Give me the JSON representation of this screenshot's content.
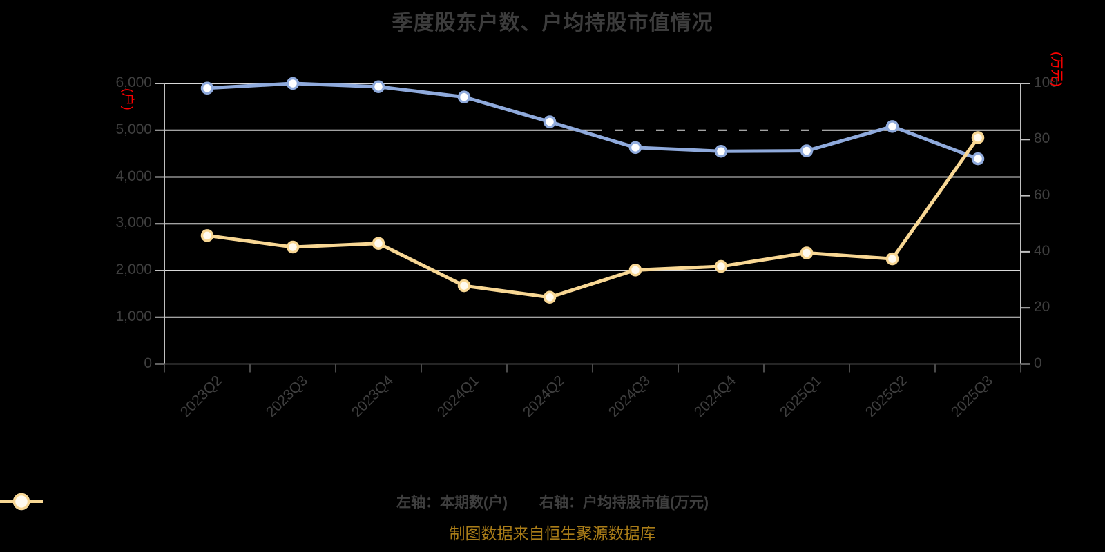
{
  "title": "季度股东户数、户均持股市值情况",
  "footer": "制图数据来自恒生聚源数据库",
  "left_axis": {
    "unit": "(户)",
    "ticks": [
      "0",
      "1,000",
      "2,000",
      "3,000",
      "4,000",
      "5,000",
      "6,000"
    ]
  },
  "right_axis": {
    "unit": "(万元)",
    "ticks": [
      "0",
      "20",
      "40",
      "60",
      "80",
      "100"
    ]
  },
  "legend": [
    {
      "label": "左轴：本期数(户)",
      "color": "#8faadc",
      "marker_fill": "#ffffff"
    },
    {
      "label": "右轴：户均持股市值(万元)",
      "color": "#f8d794",
      "marker_fill": "#fffaef"
    }
  ],
  "colors": {
    "background": "#000000",
    "grid": "#d9d9d9",
    "axis_side": "#c0c0c0",
    "axis_bottom": "#4a4a4a",
    "label": "#3f3f3f",
    "unit_red": "#ff0000",
    "footer": "#aa7d18",
    "series_blue": "#8faadc",
    "series_yellow": "#f8d794"
  },
  "chart_data": {
    "type": "line",
    "categories": [
      "2023Q2",
      "2023Q3",
      "2023Q4",
      "2024Q1",
      "2024Q2",
      "2024Q3",
      "2024Q4",
      "2025Q1",
      "2025Q2",
      "2025Q3"
    ],
    "series": [
      {
        "name": "左轴：本期数(户)",
        "axis": "left",
        "color": "#8faadc",
        "marker_fill": "#ffffff",
        "values": [
          5900,
          6000,
          5930,
          5710,
          5180,
          4630,
          4550,
          4560,
          5080,
          4390
        ]
      },
      {
        "name": "右轴：户均持股市值(万元)",
        "axis": "right",
        "color": "#f8d794",
        "marker_fill": "#fffaef",
        "values": [
          45.8,
          41.7,
          43.0,
          27.9,
          23.8,
          33.5,
          34.8,
          39.6,
          37.5,
          80.7
        ]
      }
    ],
    "left_ylim": [
      0,
      6000
    ],
    "right_ylim": [
      0,
      100
    ],
    "grid": true,
    "legend_position": "bottom"
  }
}
